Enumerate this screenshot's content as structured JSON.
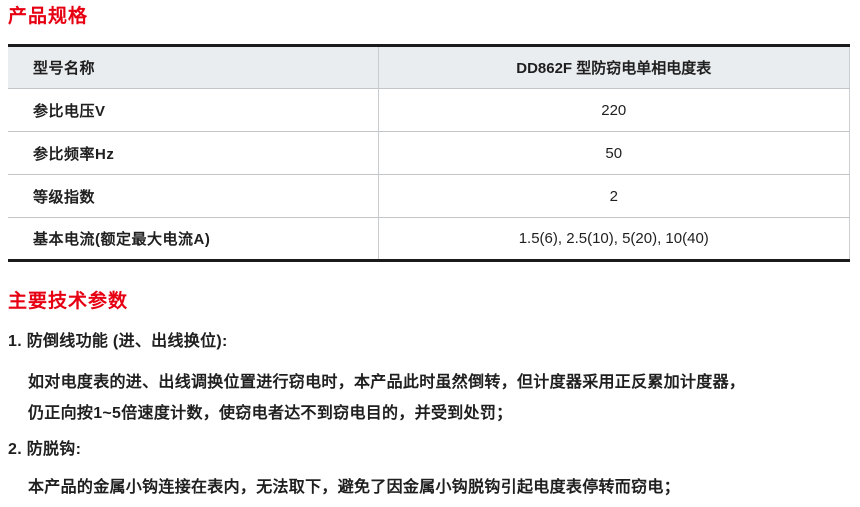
{
  "page": {
    "background_color": "#ffffff",
    "accent_color": "#e60012",
    "text_color": "#1f1f1f",
    "table_header_bg": "#e9edf0"
  },
  "product_specs": {
    "title": "产品规格",
    "table": {
      "rows": [
        {
          "label": "型号名称",
          "value": "DD862F 型防窃电单相电度表"
        },
        {
          "label": "参比电压V",
          "value": "220"
        },
        {
          "label": "参比频率Hz",
          "value": "50"
        },
        {
          "label": "等级指数",
          "value": "2"
        },
        {
          "label": "基本电流(额定最大电流A)",
          "value": "1.5(6), 2.5(10), 5(20), 10(40)"
        }
      ]
    }
  },
  "tech_params": {
    "title": "主要技术参数",
    "items": [
      {
        "heading": "1. 防倒线功能 (进、出线换位):",
        "lines": [
          "如对电度表的进、出线调换位置进行窃电时，本产品此时虽然倒转，但计度器采用正反累加计度器，",
          "仍正向按1~5倍速度计数，使窃电者达不到窃电目的，并受到处罚；"
        ]
      },
      {
        "heading": "2. 防脱钩:",
        "lines": [
          "本产品的金属小钩连接在表内，无法取下，避免了因金属小钩脱钩引起电度表停转而窃电；"
        ]
      }
    ]
  }
}
